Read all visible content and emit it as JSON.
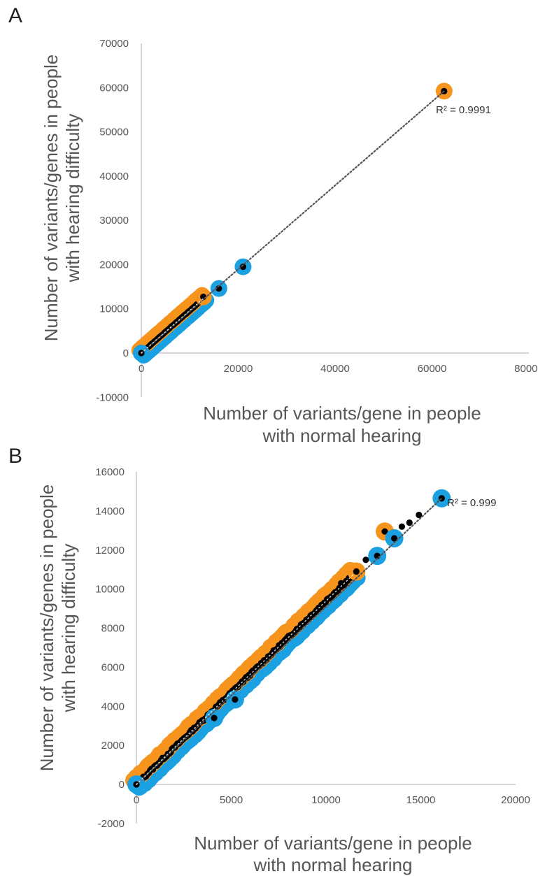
{
  "panels": [
    {
      "label": "A"
    },
    {
      "label": "B"
    }
  ],
  "colors": {
    "affected_marker": "#f7941d",
    "normal_marker": "#1ba1e2",
    "point_core": "#000000",
    "trendline": "#555555"
  },
  "chart_data": [
    {
      "type": "scatter",
      "panel": "A",
      "xlabel_lines": [
        "Number of variants/gene in people",
        "with normal hearing"
      ],
      "ylabel_lines": [
        "Number of variants/genes in people",
        "with hearing difficulty"
      ],
      "xlim": [
        -2000,
        80000
      ],
      "ylim": [
        -10000,
        70000
      ],
      "x_ticks": [
        0,
        20000,
        40000,
        60000,
        80000
      ],
      "y_ticks": [
        -10000,
        0,
        10000,
        20000,
        30000,
        40000,
        50000,
        60000,
        70000
      ],
      "r_squared_label": "R² = 0.9991",
      "trendline": {
        "x": [
          0,
          62500
        ],
        "y": [
          0,
          59200
        ]
      },
      "dense_cluster": {
        "x_range": [
          0,
          13000
        ],
        "y_range": [
          0,
          12500
        ]
      },
      "highlighted_points": [
        {
          "x": 62500,
          "y": 59200,
          "group": "affected"
        },
        {
          "x": 21000,
          "y": 19500,
          "group": "normal"
        },
        {
          "x": 16000,
          "y": 14600,
          "group": "normal"
        },
        {
          "x": 12800,
          "y": 12700,
          "group": "affected"
        },
        {
          "x": 0,
          "y": 0,
          "group": "normal"
        }
      ]
    },
    {
      "type": "scatter",
      "panel": "B",
      "xlabel_lines": [
        "Number of variants/gene in people",
        "with normal hearing"
      ],
      "ylabel_lines": [
        "Number of variants/genes in people",
        "with hearing difficulty"
      ],
      "xlim": [
        -200,
        20000
      ],
      "ylim": [
        -2000,
        16000
      ],
      "x_ticks": [
        0,
        5000,
        10000,
        15000,
        20000
      ],
      "y_ticks": [
        -2000,
        0,
        2000,
        4000,
        6000,
        8000,
        10000,
        12000,
        14000,
        16000
      ],
      "r_squared_label": "R² = 0.999",
      "trendline": {
        "x": [
          0,
          16100
        ],
        "y": [
          0,
          14650
        ]
      },
      "dense_cluster": {
        "x_range": [
          0,
          11500
        ],
        "y_range": [
          0,
          10800
        ]
      },
      "highlighted_points": [
        {
          "x": 16100,
          "y": 14650,
          "group": "normal"
        },
        {
          "x": 13100,
          "y": 12950,
          "group": "affected"
        },
        {
          "x": 13600,
          "y": 12600,
          "group": "normal"
        },
        {
          "x": 12700,
          "y": 11700,
          "group": "normal"
        },
        {
          "x": 11600,
          "y": 10900,
          "group": "affected"
        },
        {
          "x": 5200,
          "y": 4350,
          "group": "normal"
        },
        {
          "x": 4100,
          "y": 3400,
          "group": "normal"
        },
        {
          "x": 0,
          "y": 0,
          "group": "normal"
        }
      ],
      "sparse_points": [
        {
          "x": 12100,
          "y": 11500
        },
        {
          "x": 12400,
          "y": 11600
        },
        {
          "x": 13400,
          "y": 12700
        },
        {
          "x": 14000,
          "y": 13200
        },
        {
          "x": 14400,
          "y": 13400
        },
        {
          "x": 14900,
          "y": 13800
        },
        {
          "x": 10800,
          "y": 10300
        },
        {
          "x": 11300,
          "y": 10600
        }
      ]
    }
  ]
}
